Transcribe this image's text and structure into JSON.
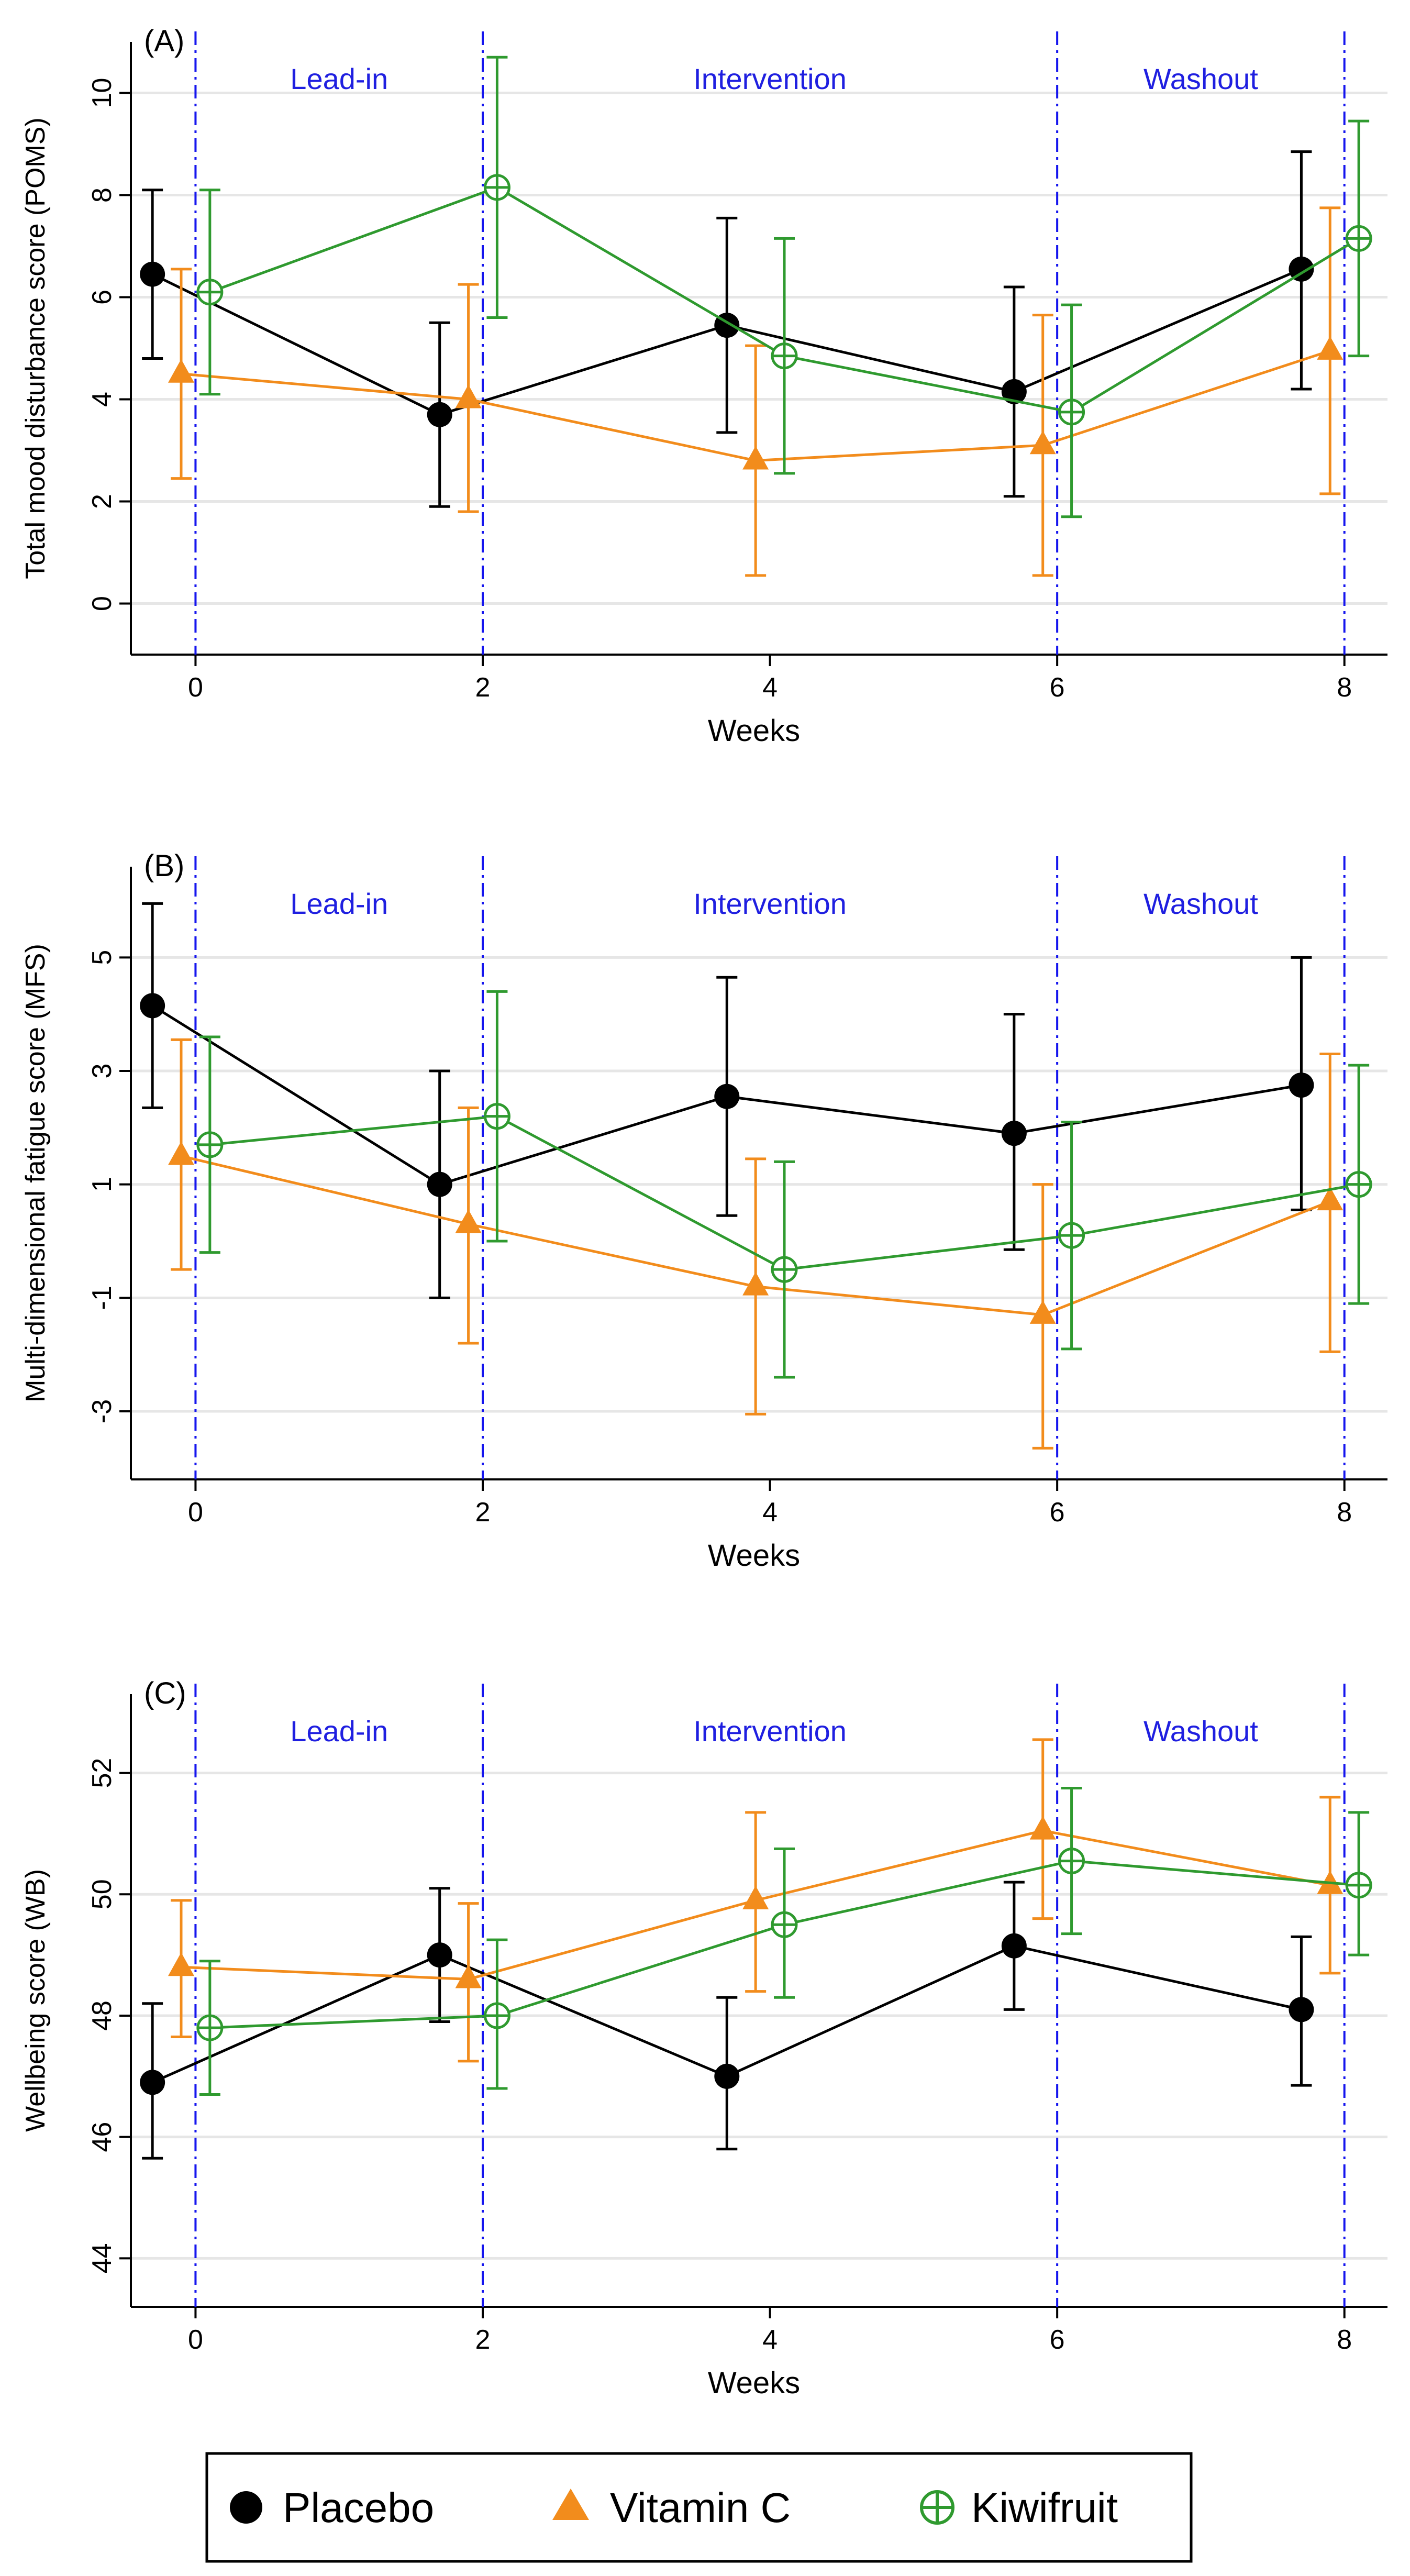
{
  "colors": {
    "placebo": "#000000",
    "vitamin_c": "#f28c1c",
    "kiwifruit": "#2f9a2f",
    "phase_line": "#1515ee",
    "phase_label": "#1f1fe0",
    "grid": "#e6e6e6",
    "axis": "#000000"
  },
  "legend": {
    "placebo_label": "Placebo",
    "vitamin_c_label": "Vitamin C",
    "kiwifruit_label": "Kiwifruit",
    "placebo_marker": "filled-circle",
    "vitamin_c_marker": "filled-triangle",
    "kiwifruit_marker": "open-circle-with-cross"
  },
  "chart_data": [
    {
      "type": "line",
      "panel_label": "(A)",
      "xlabel": "Weeks",
      "ylabel": "Total mood disturbance score (POMS)",
      "xlim": [
        -0.45,
        8.3
      ],
      "ylim": [
        -1,
        11
      ],
      "xticks": [
        "0",
        "2",
        "4",
        "6",
        "8"
      ],
      "yticks": [
        "0",
        "2",
        "4",
        "6",
        "8",
        "10"
      ],
      "phases": [
        {
          "label": "Lead-in",
          "x_start": 0,
          "x_end": 2
        },
        {
          "label": "Intervention",
          "x_start": 2,
          "x_end": 6
        },
        {
          "label": "Washout",
          "x_start": 6,
          "x_end": 8
        }
      ],
      "series": [
        {
          "name": "Placebo",
          "x": [
            -0.3,
            1.7,
            3.7,
            5.7,
            7.7
          ],
          "y": [
            6.45,
            3.7,
            5.45,
            4.15,
            6.55
          ],
          "err_low": [
            4.8,
            1.9,
            3.35,
            2.1,
            4.2
          ],
          "err_high": [
            8.1,
            5.5,
            7.55,
            6.2,
            8.85
          ]
        },
        {
          "name": "Vitamin C",
          "x": [
            -0.1,
            1.9,
            3.9,
            5.9,
            7.9
          ],
          "y": [
            4.5,
            4.0,
            2.8,
            3.1,
            4.95
          ],
          "err_low": [
            2.45,
            1.8,
            0.55,
            0.55,
            2.15
          ],
          "err_high": [
            6.55,
            6.25,
            5.05,
            5.65,
            7.75
          ]
        },
        {
          "name": "Kiwifruit",
          "x": [
            0.1,
            2.1,
            4.1,
            6.1,
            8.1
          ],
          "y": [
            6.1,
            8.15,
            4.85,
            3.75,
            7.15
          ],
          "err_low": [
            4.1,
            5.6,
            2.55,
            1.7,
            4.85
          ],
          "err_high": [
            8.1,
            10.7,
            7.15,
            5.85,
            9.45
          ]
        }
      ]
    },
    {
      "type": "line",
      "panel_label": "(B)",
      "xlabel": "Weeks",
      "ylabel": "Multi-dimensional fatigue score (MFS)",
      "xlim": [
        -0.45,
        8.3
      ],
      "ylim": [
        -4.2,
        6.6
      ],
      "xticks": [
        "0",
        "2",
        "4",
        "6",
        "8"
      ],
      "yticks": [
        "-3",
        "-1",
        "1",
        "3",
        "5"
      ],
      "phases": [
        {
          "label": "Lead-in",
          "x_start": 0,
          "x_end": 2
        },
        {
          "label": "Intervention",
          "x_start": 2,
          "x_end": 6
        },
        {
          "label": "Washout",
          "x_start": 6,
          "x_end": 8
        }
      ],
      "series": [
        {
          "name": "Placebo",
          "x": [
            -0.3,
            1.7,
            3.7,
            5.7,
            7.7
          ],
          "y": [
            4.15,
            1.0,
            2.55,
            1.9,
            2.75
          ],
          "err_low": [
            2.35,
            -1.0,
            0.45,
            -0.15,
            0.55
          ],
          "err_high": [
            5.95,
            3.0,
            4.65,
            4.0,
            5.0
          ]
        },
        {
          "name": "Vitamin C",
          "x": [
            -0.1,
            1.9,
            3.9,
            5.9,
            7.9
          ],
          "y": [
            1.5,
            0.3,
            -0.8,
            -1.3,
            0.7
          ],
          "err_low": [
            -0.5,
            -1.8,
            -3.05,
            -3.65,
            -1.95
          ],
          "err_high": [
            3.55,
            2.35,
            1.45,
            1.0,
            3.3
          ]
        },
        {
          "name": "Kiwifruit",
          "x": [
            0.1,
            2.1,
            4.1,
            6.1,
            8.1
          ],
          "y": [
            1.7,
            2.2,
            -0.5,
            0.1,
            1.0
          ],
          "err_low": [
            -0.2,
            0.0,
            -2.4,
            -1.9,
            -1.1
          ],
          "err_high": [
            3.6,
            4.4,
            1.4,
            2.1,
            3.1
          ]
        }
      ]
    },
    {
      "type": "line",
      "panel_label": "(C)",
      "xlabel": "Weeks",
      "ylabel": "Wellbeing score (WB)",
      "xlim": [
        -0.45,
        8.3
      ],
      "ylim": [
        43.2,
        53.3
      ],
      "xticks": [
        "0",
        "2",
        "4",
        "6",
        "8"
      ],
      "yticks": [
        "44",
        "46",
        "48",
        "50",
        "52"
      ],
      "phases": [
        {
          "label": "Lead-in",
          "x_start": 0,
          "x_end": 2
        },
        {
          "label": "Intervention",
          "x_start": 2,
          "x_end": 6
        },
        {
          "label": "Washout",
          "x_start": 6,
          "x_end": 8
        }
      ],
      "series": [
        {
          "name": "Placebo",
          "x": [
            -0.3,
            1.7,
            3.7,
            5.7,
            7.7
          ],
          "y": [
            46.9,
            49.0,
            47.0,
            49.15,
            48.1
          ],
          "err_low": [
            45.65,
            47.9,
            45.8,
            48.1,
            46.85
          ],
          "err_high": [
            48.2,
            50.1,
            48.3,
            50.2,
            49.3
          ]
        },
        {
          "name": "Vitamin C",
          "x": [
            -0.1,
            1.9,
            3.9,
            5.9,
            7.9
          ],
          "y": [
            48.8,
            48.6,
            49.9,
            51.05,
            50.15
          ],
          "err_low": [
            47.65,
            47.25,
            48.4,
            49.6,
            48.7
          ],
          "err_high": [
            49.9,
            49.85,
            51.35,
            52.55,
            51.6
          ]
        },
        {
          "name": "Kiwifruit",
          "x": [
            0.1,
            2.1,
            4.1,
            6.1,
            8.1
          ],
          "y": [
            47.8,
            48.0,
            49.5,
            50.55,
            50.15
          ],
          "err_low": [
            46.7,
            46.8,
            48.3,
            49.35,
            49.0
          ],
          "err_high": [
            48.9,
            49.25,
            50.75,
            51.75,
            51.35
          ]
        }
      ]
    }
  ]
}
